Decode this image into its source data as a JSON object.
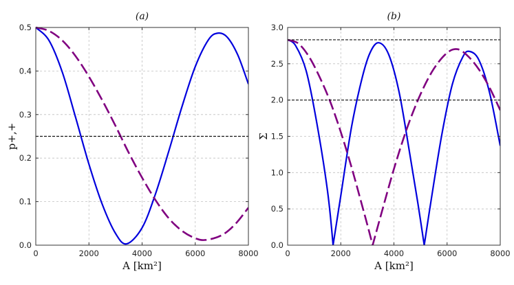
{
  "chart_data": [
    {
      "type": "line",
      "title": "(a)",
      "xlabel": "A [km²]",
      "ylabel": "p+,+",
      "xlim": [
        0,
        8000
      ],
      "ylim": [
        0,
        0.5
      ],
      "xticks": [
        "0",
        "2000",
        "4000",
        "6000",
        "8000"
      ],
      "yticks": [
        "0.0",
        "0.1",
        "0.2",
        "0.3",
        "0.4",
        "0.5"
      ],
      "grid": true,
      "series": [
        {
          "color": "#0000dd",
          "style": "solid",
          "x": [
            0,
            500,
            1000,
            1500,
            2000,
            2500,
            3000,
            3420,
            4000,
            4500,
            5000,
            5500,
            6000,
            6500,
            6850,
            7200,
            7600,
            8000
          ],
          "y": [
            0.5,
            0.47,
            0.397,
            0.293,
            0.186,
            0.094,
            0.027,
            0.003,
            0.04,
            0.117,
            0.215,
            0.318,
            0.41,
            0.472,
            0.487,
            0.478,
            0.437,
            0.37
          ]
        },
        {
          "color": "#800080",
          "style": "dashed",
          "x": [
            0,
            500,
            1000,
            1500,
            2000,
            2500,
            3000,
            3500,
            4000,
            4500,
            5000,
            5500,
            6000,
            6400,
            7000,
            7500,
            8000
          ],
          "y": [
            0.5,
            0.492,
            0.47,
            0.434,
            0.387,
            0.333,
            0.274,
            0.212,
            0.155,
            0.104,
            0.062,
            0.033,
            0.016,
            0.012,
            0.023,
            0.048,
            0.086
          ]
        },
        {
          "color": "#111111",
          "style": "dotted-dash",
          "x": [
            0,
            8000
          ],
          "y": [
            0.25,
            0.25
          ]
        }
      ]
    },
    {
      "type": "line",
      "title": "(b)",
      "xlabel": "A [km²]",
      "ylabel": "Σ",
      "xlim": [
        0,
        8000
      ],
      "ylim": [
        0,
        3.0
      ],
      "xticks": [
        "0",
        "2000",
        "4000",
        "6000",
        "8000"
      ],
      "yticks": [
        "0.0",
        "0.5",
        "1.0",
        "1.5",
        "2.0",
        "2.5",
        "3.0"
      ],
      "grid": true,
      "series": [
        {
          "color": "#0000dd",
          "style": "solid",
          "x": [
            0,
            300,
            700,
            1100,
            1500,
            1710,
            2000,
            2400,
            2800,
            3100,
            3420,
            3800,
            4200,
            4600,
            4900,
            5140,
            5400,
            5800,
            6200,
            6600,
            6850,
            7200,
            7600,
            8000
          ],
          "y": [
            2.83,
            2.75,
            2.4,
            1.68,
            0.75,
            0.0,
            0.68,
            1.62,
            2.3,
            2.65,
            2.79,
            2.63,
            2.1,
            1.25,
            0.58,
            0.0,
            0.62,
            1.52,
            2.22,
            2.6,
            2.67,
            2.55,
            2.1,
            1.37
          ]
        },
        {
          "color": "#800080",
          "style": "dashed",
          "x": [
            0,
            400,
            800,
            1200,
            1600,
            2000,
            2400,
            2800,
            3000,
            3200,
            3500,
            4000,
            4500,
            5000,
            5500,
            6000,
            6400,
            6800,
            7200,
            7600,
            8000
          ],
          "y": [
            2.83,
            2.78,
            2.6,
            2.32,
            1.98,
            1.56,
            1.08,
            0.55,
            0.28,
            0.0,
            0.4,
            1.05,
            1.62,
            2.08,
            2.43,
            2.65,
            2.7,
            2.6,
            2.42,
            2.17,
            1.86
          ]
        },
        {
          "color": "#111111",
          "style": "dotted-dash",
          "x": [
            0,
            8000
          ],
          "y": [
            2.83,
            2.83
          ]
        },
        {
          "color": "#111111",
          "style": "dotted-dash",
          "x": [
            0,
            8000
          ],
          "y": [
            2.0,
            2.0
          ]
        }
      ]
    }
  ]
}
